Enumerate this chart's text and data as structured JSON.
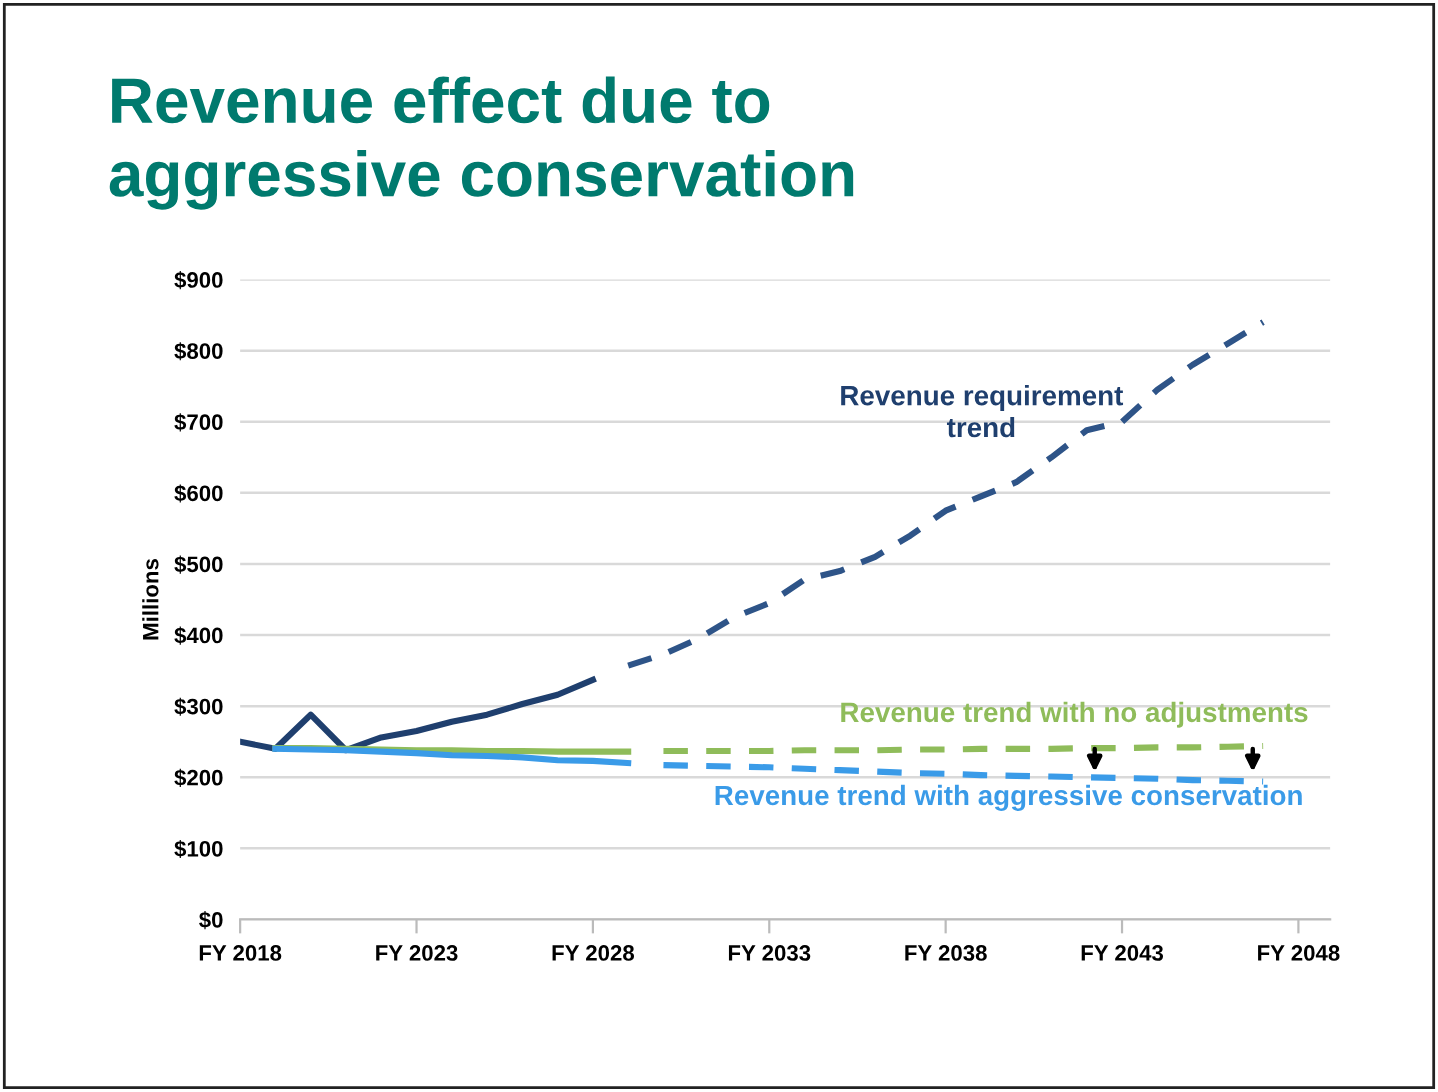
{
  "chart_data": {
    "type": "line",
    "title": "Revenue effect due to\naggressive conservation",
    "ylabel": "Millions",
    "categories": [
      "FY 2018",
      null,
      null,
      null,
      null,
      "FY 2023",
      null,
      null,
      null,
      null,
      "FY 2028",
      null,
      null,
      null,
      null,
      "FY 2033",
      null,
      null,
      null,
      null,
      "FY 2038",
      null,
      null,
      null,
      null,
      "FY 2043",
      null,
      null,
      null,
      null,
      "FY 2048"
    ],
    "ylim": [
      0,
      900
    ],
    "yticks": [
      {
        "value": 0,
        "label": "$0"
      },
      {
        "value": 100,
        "label": "$100"
      },
      {
        "value": 200,
        "label": "$200"
      },
      {
        "value": 300,
        "label": "$300"
      },
      {
        "value": 400,
        "label": "$400"
      },
      {
        "value": 500,
        "label": "$500"
      },
      {
        "value": 600,
        "label": "$600"
      },
      {
        "value": 700,
        "label": "$700"
      },
      {
        "value": 800,
        "label": "$800"
      },
      {
        "value": 900,
        "label": "$900"
      }
    ],
    "grid": "y",
    "legend": false,
    "marker": "none",
    "series": [
      {
        "color": "#1f3f6e",
        "line_style": "solid",
        "values": [
          250,
          240,
          288,
          238,
          256,
          265,
          278,
          288,
          303,
          316,
          337,
          null,
          null,
          null,
          null,
          null,
          null,
          null,
          null,
          null,
          null,
          null,
          null,
          null,
          null,
          null,
          null,
          null,
          null,
          null,
          null
        ]
      },
      {
        "color": "#2e5488",
        "line_style": "dashed",
        "values": [
          null,
          null,
          null,
          null,
          null,
          null,
          null,
          null,
          null,
          null,
          null,
          357,
          373,
          395,
          425,
          445,
          478,
          490,
          510,
          540,
          575,
          595,
          615,
          650,
          688,
          700,
          745,
          780,
          810,
          840,
          null
        ]
      },
      {
        "color": "#8fbc5a",
        "line_style": "solid",
        "values": [
          null,
          241,
          241,
          240,
          239,
          238,
          238,
          237,
          237,
          236,
          236,
          236,
          null,
          null,
          null,
          null,
          null,
          null,
          null,
          null,
          null,
          null,
          null,
          null,
          null,
          null,
          null,
          null,
          null,
          null,
          null
        ]
      },
      {
        "color": "#8fbc5a",
        "line_style": "dashed",
        "values": [
          null,
          null,
          null,
          null,
          null,
          null,
          null,
          null,
          null,
          null,
          null,
          null,
          237,
          237,
          237,
          237,
          238,
          238,
          238,
          239,
          239,
          240,
          240,
          240,
          241,
          241,
          242,
          242,
          243,
          244,
          null
        ]
      },
      {
        "color": "#3a9be8",
        "line_style": "solid",
        "values": [
          null,
          240,
          239,
          238,
          236,
          234,
          231,
          230,
          228,
          224,
          223,
          220,
          null,
          null,
          null,
          null,
          null,
          null,
          null,
          null,
          null,
          null,
          null,
          null,
          null,
          null,
          null,
          null,
          null,
          null,
          null
        ]
      },
      {
        "color": "#3a9be8",
        "line_style": "dashed",
        "values": [
          null,
          null,
          null,
          null,
          null,
          null,
          null,
          null,
          null,
          null,
          null,
          null,
          217,
          216,
          215,
          214,
          212,
          210,
          208,
          206,
          205,
          203,
          202,
          201,
          200,
          199,
          198,
          196,
          195,
          194,
          null
        ]
      }
    ],
    "annotations": [
      "Revenue requirement\ntrend",
      "Revenue trend with no adjustments",
      "Revenue trend with aggressive conservation"
    ]
  }
}
